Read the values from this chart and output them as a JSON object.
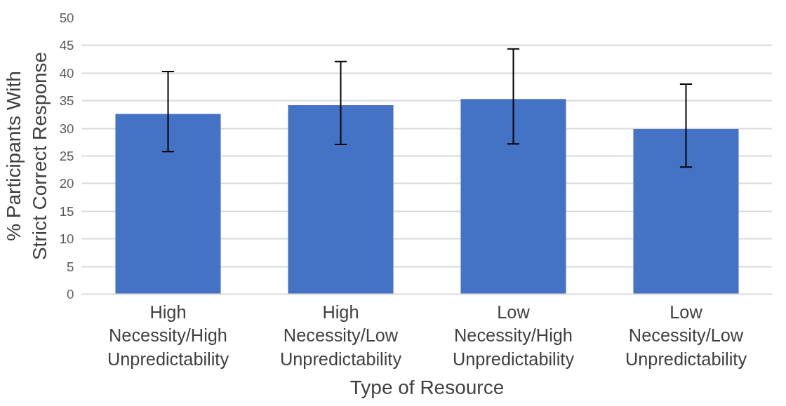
{
  "chart_data": {
    "type": "bar",
    "xlabel": "Type of Resource",
    "ylabel": "% Participants With\nStrict Correct Response",
    "categories": [
      "High Necessity/High Unpredictability",
      "High Necessity/Low Unpredictability",
      "Low Necessity/High Unpredictability",
      "Low Necessity/Low Unpredictability"
    ],
    "values": [
      32.6,
      34.2,
      35.3,
      29.9
    ],
    "errors": [
      [
        25.8,
        40.3
      ],
      [
        27.1,
        42.1
      ],
      [
        27.2,
        44.4
      ],
      [
        23.0,
        38.0
      ]
    ],
    "color": "#4472c4",
    "ylim": [
      0,
      50
    ],
    "yticks": [
      0,
      5,
      10,
      15,
      20,
      25,
      30,
      35,
      40,
      45,
      50
    ],
    "grid": "y"
  }
}
